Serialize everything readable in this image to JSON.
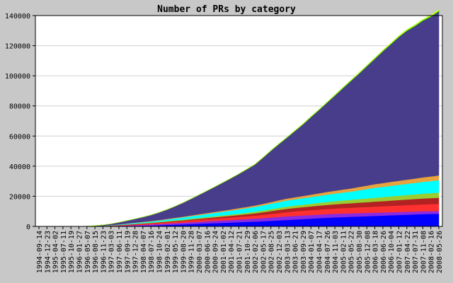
{
  "chart_data": {
    "type": "area",
    "title": "Number of PRs by category",
    "xlabel": "",
    "ylabel": "",
    "ylim": [
      0,
      140000
    ],
    "yticks": [
      0,
      20000,
      40000,
      60000,
      80000,
      100000,
      120000,
      140000
    ],
    "grid": true,
    "stacked": true,
    "x_tick_labels": [
      "1994-09-14",
      "1994-12-23",
      "1995-04-02",
      "1995-07-11",
      "1995-10-19",
      "1996-01-27",
      "1996-05-07",
      "1996-08-15",
      "1996-11-23",
      "1997-03-03",
      "1997-06-11",
      "1997-09-19",
      "1997-12-28",
      "1998-04-07",
      "1998-07-16",
      "1998-10-24",
      "1999-02-01",
      "1999-05-12",
      "1999-08-20",
      "1999-11-28",
      "2000-03-07",
      "2000-06-16",
      "2000-09-24",
      "2001-01-02",
      "2001-04-12",
      "2001-07-21",
      "2001-10-29",
      "2002-02-06",
      "2002-05-17",
      "2002-08-25",
      "2002-12-03",
      "2003-03-13",
      "2003-06-21",
      "2003-09-29",
      "2004-01-07",
      "2004-04-17",
      "2004-07-26",
      "2004-11-03",
      "2005-02-11",
      "2005-05-22",
      "2005-08-30",
      "2005-12-08",
      "2006-03-18",
      "2006-06-26",
      "2006-10-04",
      "2007-01-12",
      "2007-04-22",
      "2007-07-31",
      "2007-11-08",
      "2008-02-16",
      "2008-05-26"
    ],
    "series": [
      {
        "color": "#0000ff",
        "values": [
          0,
          0,
          0,
          0,
          0,
          0,
          0,
          50,
          100,
          150,
          200,
          300,
          400,
          500,
          600,
          800,
          1000,
          1200,
          1400,
          1600,
          1800,
          2000,
          2200,
          2400,
          2600,
          2800,
          3000,
          3200,
          3400,
          3700,
          4000,
          4300,
          4600,
          4900,
          5200,
          5500,
          5800,
          6000,
          6200,
          6400,
          6600,
          6800,
          7000,
          7200,
          7400,
          7600,
          7800,
          8000,
          8200,
          8300,
          8400
        ]
      },
      {
        "color": "#8a2be2",
        "values": [
          0,
          0,
          0,
          0,
          0,
          0,
          0,
          0,
          100,
          200,
          300,
          400,
          500,
          600,
          700,
          800,
          900,
          1000,
          1100,
          1200,
          1300,
          1400,
          1500,
          1600,
          1700,
          1800,
          1900,
          2000,
          2100,
          2200,
          2300,
          2400,
          2400,
          2400,
          2400,
          2400,
          2400,
          2400,
          2400,
          2300,
          2300,
          2200,
          2200,
          2100,
          2100,
          2000,
          2000,
          1900,
          1900,
          1800,
          1800
        ]
      },
      {
        "color": "#ff3030",
        "values": [
          0,
          0,
          0,
          0,
          0,
          0,
          50,
          100,
          150,
          200,
          300,
          400,
          500,
          600,
          700,
          800,
          900,
          1000,
          1100,
          1200,
          1300,
          1400,
          1500,
          1600,
          1700,
          1800,
          1900,
          2000,
          2200,
          2400,
          2600,
          2800,
          3000,
          3100,
          3200,
          3300,
          3400,
          3500,
          3600,
          3700,
          3800,
          3900,
          4000,
          4100,
          4200,
          4300,
          4400,
          4500,
          4600,
          4700,
          4800
        ]
      },
      {
        "color": "#b22222",
        "values": [
          0,
          0,
          0,
          0,
          0,
          0,
          0,
          0,
          0,
          50,
          100,
          150,
          200,
          250,
          300,
          350,
          400,
          450,
          500,
          600,
          700,
          800,
          900,
          1000,
          1100,
          1200,
          1300,
          1500,
          1700,
          1900,
          2100,
          2200,
          2300,
          2400,
          2500,
          2600,
          2700,
          2800,
          2900,
          3000,
          3100,
          3200,
          3300,
          3400,
          3500,
          3600,
          3700,
          3800,
          3900,
          4000,
          4100
        ]
      },
      {
        "color": "#9acd32",
        "values": [
          0,
          0,
          0,
          0,
          0,
          0,
          0,
          0,
          0,
          50,
          100,
          150,
          200,
          250,
          300,
          350,
          400,
          450,
          500,
          550,
          600,
          650,
          700,
          750,
          800,
          900,
          1000,
          1100,
          1200,
          1300,
          1400,
          1500,
          1600,
          1700,
          1800,
          1900,
          2000,
          2100,
          2200,
          2300,
          2400,
          2500,
          2600,
          2700,
          2800,
          2900,
          3000,
          3100,
          3200,
          3300,
          3400
        ]
      },
      {
        "color": "#00ffff",
        "values": [
          0,
          0,
          0,
          0,
          0,
          0,
          0,
          50,
          100,
          200,
          300,
          400,
          500,
          600,
          700,
          800,
          1000,
          1200,
          1400,
          1600,
          1800,
          2000,
          2200,
          2400,
          2600,
          2800,
          3000,
          3200,
          3400,
          3600,
          3800,
          4000,
          4100,
          4200,
          4400,
          4600,
          4800,
          5000,
          5200,
          5400,
          5800,
          6200,
          6600,
          6800,
          7000,
          7200,
          7400,
          7600,
          7800,
          8000,
          8200
        ]
      },
      {
        "color": "#e8a33c",
        "values": [
          0,
          0,
          0,
          0,
          0,
          0,
          0,
          0,
          0,
          50,
          100,
          150,
          200,
          250,
          300,
          350,
          400,
          450,
          500,
          550,
          600,
          650,
          700,
          750,
          800,
          850,
          900,
          950,
          1000,
          1100,
          1200,
          1300,
          1400,
          1500,
          1600,
          1700,
          1800,
          1900,
          2000,
          2100,
          2200,
          2300,
          2400,
          2500,
          2600,
          2700,
          2800,
          2900,
          3000,
          3100,
          3200
        ]
      },
      {
        "color": "#483d8b",
        "values": [
          0,
          0,
          0,
          0,
          0,
          0,
          100,
          300,
          500,
          800,
          1300,
          1900,
          2500,
          3200,
          4000,
          5000,
          6200,
          7600,
          9200,
          11000,
          12800,
          14700,
          16600,
          18600,
          20600,
          22700,
          24900,
          27100,
          30500,
          34000,
          37200,
          40400,
          43900,
          47500,
          51400,
          55200,
          59100,
          63100,
          67200,
          71300,
          75100,
          79200,
          83100,
          87400,
          91300,
          95400,
          98700,
          101100,
          103900,
          106000,
          108800
        ]
      },
      {
        "color": "#00c000",
        "values": [
          0,
          0,
          0,
          0,
          0,
          0,
          0,
          0,
          0,
          0,
          0,
          0,
          0,
          0,
          0,
          0,
          0,
          0,
          0,
          0,
          50,
          50,
          100,
          100,
          100,
          100,
          150,
          150,
          150,
          150,
          200,
          200,
          200,
          200,
          250,
          250,
          250,
          250,
          300,
          300,
          300,
          300,
          350,
          350,
          350,
          400,
          400,
          400,
          450,
          450,
          500
        ]
      },
      {
        "color": "#ffff00",
        "values": [
          0,
          0,
          0,
          0,
          0,
          0,
          0,
          0,
          0,
          0,
          0,
          0,
          0,
          0,
          0,
          0,
          0,
          0,
          0,
          0,
          0,
          0,
          50,
          50,
          50,
          50,
          50,
          100,
          100,
          100,
          100,
          100,
          150,
          150,
          150,
          150,
          200,
          200,
          200,
          200,
          250,
          250,
          250,
          300,
          300,
          300,
          350,
          350,
          350,
          400,
          400
        ]
      },
      {
        "color": "#adff2f",
        "values": [
          0,
          0,
          0,
          0,
          0,
          0,
          0,
          0,
          0,
          0,
          0,
          0,
          0,
          0,
          0,
          0,
          0,
          0,
          0,
          0,
          0,
          0,
          0,
          0,
          0,
          0,
          50,
          50,
          50,
          50,
          50,
          50,
          100,
          100,
          100,
          100,
          100,
          150,
          150,
          150,
          150,
          150,
          200,
          200,
          200,
          200,
          250,
          250,
          250,
          300,
          300
        ]
      }
    ]
  }
}
